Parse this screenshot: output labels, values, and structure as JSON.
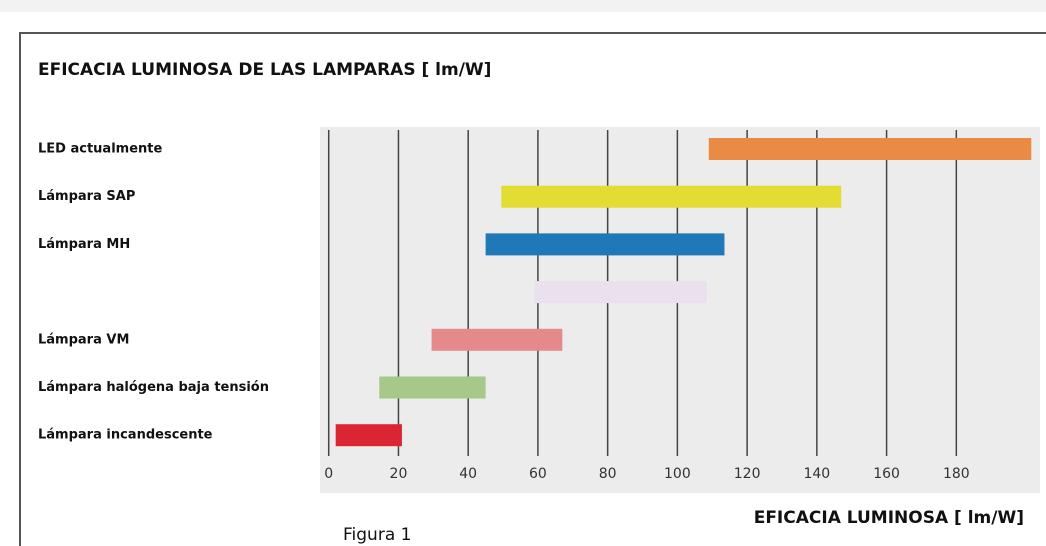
{
  "chart_data": {
    "type": "range-bar",
    "title": "EFICACIA LUMINOSA DE LAS LAMPARAS  [ lm/W]",
    "x_label": "EFICACIA LUMINOSA [ lm/W]",
    "caption": "Figura 1",
    "categories": [
      "LED actualmente",
      "Lámpara SAP",
      "Lámpara MH",
      null,
      "Lámpara VM",
      "Lámpara halógena baja tensión",
      "Lámpara incandescente"
    ],
    "ranges": [
      [
        109,
        201.5
      ],
      [
        49.5,
        147
      ],
      [
        45,
        113.5
      ],
      [
        59,
        108.5
      ],
      [
        29.5,
        67
      ],
      [
        14.5,
        45
      ],
      [
        2,
        21
      ]
    ],
    "colors": [
      "#e98a45",
      "#e2dc33",
      "#1f78b8",
      "#ebe0ee",
      "#e58a8a",
      "#a6c98a",
      "#db2631"
    ],
    "xlim": [
      -2.5,
      204
    ],
    "xticks": [
      0,
      20,
      40,
      60,
      80,
      100,
      120,
      140,
      160,
      180
    ],
    "grid": true
  }
}
